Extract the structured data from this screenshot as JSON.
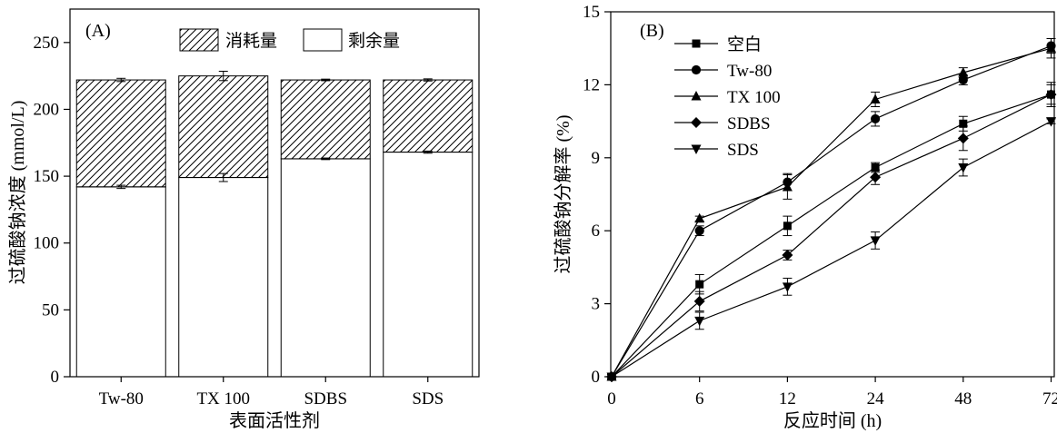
{
  "chart_data": [
    {
      "type": "bar",
      "panel_label": "(A)",
      "stacked": true,
      "categories": [
        "Tw-80",
        "TX 100",
        "SDBS",
        "SDS"
      ],
      "series": [
        {
          "name": "剩余量",
          "values": [
            142,
            149,
            163,
            168
          ],
          "errors": [
            1.2,
            3.0,
            0.6,
            0.8
          ],
          "fill": "plain"
        },
        {
          "name": "消耗量",
          "values": [
            80,
            76,
            59,
            54
          ],
          "errors": [
            1.2,
            3.5,
            0.6,
            0.8
          ],
          "fill": "hatch"
        }
      ],
      "xlabel": "表面活性剂",
      "ylabel": "过硫酸钠浓度 (mmol/L)",
      "ylim": [
        0,
        275
      ],
      "yticks": [
        0,
        50,
        100,
        150,
        200,
        250
      ],
      "legend_position": "top-center",
      "grid": false
    },
    {
      "type": "line",
      "panel_label": "(B)",
      "x": [
        "0",
        "6",
        "12",
        "24",
        "48",
        "72"
      ],
      "series": [
        {
          "name": "空白",
          "marker": "square",
          "values": [
            0,
            3.8,
            6.2,
            8.6,
            10.4,
            11.6
          ],
          "errors": [
            0.1,
            0.4,
            0.4,
            0.2,
            0.3,
            0.5
          ]
        },
        {
          "name": "Tw-80",
          "marker": "circle",
          "values": [
            0,
            6.0,
            8.0,
            10.6,
            12.2,
            13.6
          ],
          "errors": [
            0.1,
            0.2,
            0.35,
            0.3,
            0.2,
            0.3
          ]
        },
        {
          "name": "TX 100",
          "marker": "triangle-up",
          "values": [
            0,
            6.5,
            7.8,
            11.4,
            12.5,
            13.5
          ],
          "errors": [
            0.1,
            0.1,
            0.5,
            0.3,
            0.2,
            0.4
          ]
        },
        {
          "name": "SDBS",
          "marker": "diamond",
          "values": [
            0,
            3.1,
            5.0,
            8.2,
            9.8,
            11.6
          ],
          "errors": [
            0.1,
            0.4,
            0.2,
            0.3,
            0.5,
            0.4
          ]
        },
        {
          "name": "SDS",
          "marker": "triangle-down",
          "values": [
            0,
            2.3,
            3.7,
            5.6,
            8.6,
            10.5
          ],
          "errors": [
            0.1,
            0.35,
            0.35,
            0.35,
            0.35,
            0.1
          ]
        }
      ],
      "xlabel": "反应时间 (h)",
      "ylabel": "过硫酸钠分解率 (%)",
      "ylim": [
        0,
        15
      ],
      "yticks": [
        0,
        3,
        6,
        9,
        12,
        15
      ],
      "legend_position": "top-left",
      "grid": false
    }
  ],
  "colors": {
    "ink": "#000000",
    "background": "#ffffff"
  }
}
